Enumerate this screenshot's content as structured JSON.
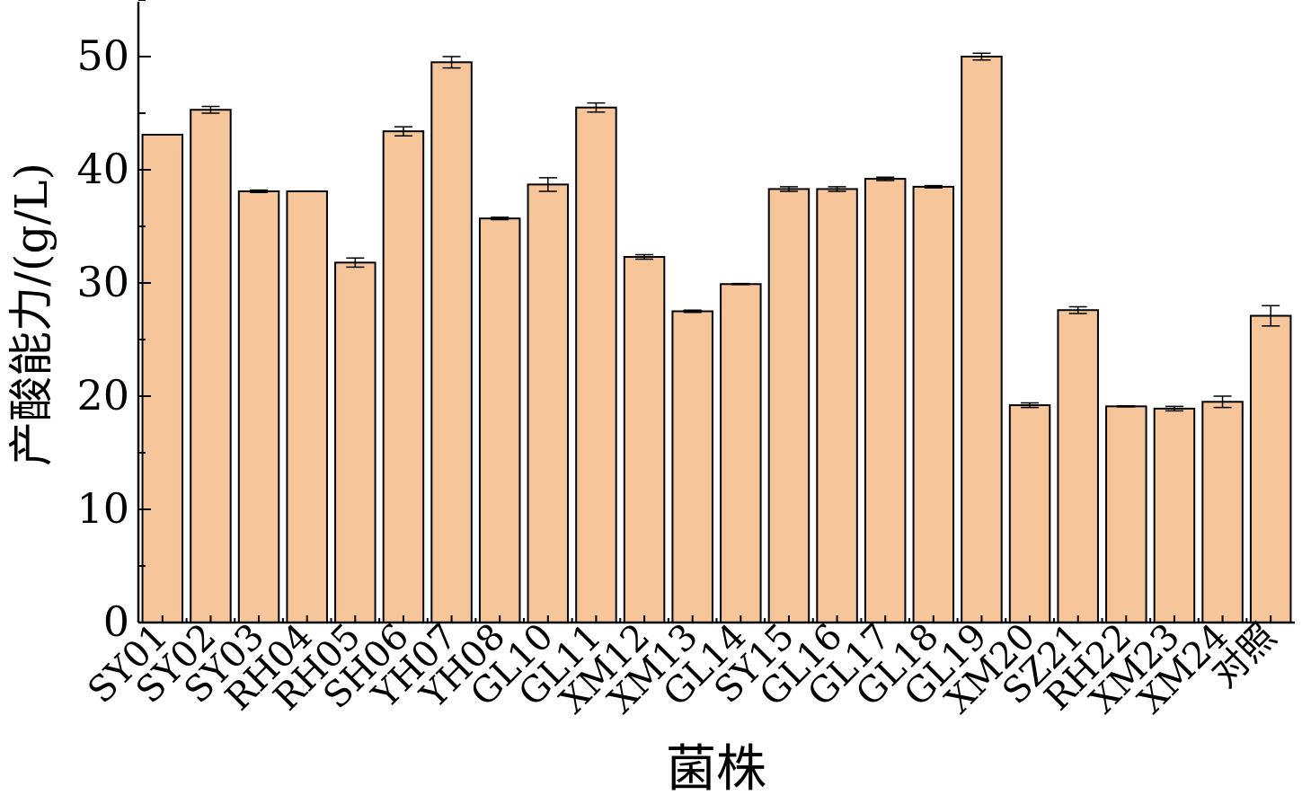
{
  "chart_data": {
    "type": "bar",
    "xlabel": "菌株",
    "ylabel": "产酸能力/(g/L)",
    "ylim": [
      0,
      55
    ],
    "yticks": [
      0,
      10,
      20,
      30,
      40,
      50
    ],
    "grid": false,
    "bar_color": "#F6C599",
    "edge_color": "#000000",
    "categories": [
      "SY01",
      "SY02",
      "SY03",
      "RH04",
      "RH05",
      "SH06",
      "YH07",
      "YH08",
      "GL10",
      "GL11",
      "XM12",
      "XM13",
      "GL14",
      "SY15",
      "GL16",
      "GL17",
      "GL18",
      "GL19",
      "XM20",
      "SZ21",
      "RH22",
      "XM23",
      "XM24",
      "对照"
    ],
    "values": [
      43.1,
      45.3,
      38.1,
      38.1,
      31.8,
      43.4,
      49.5,
      35.7,
      38.7,
      45.5,
      32.3,
      27.5,
      29.9,
      38.3,
      38.3,
      39.2,
      38.5,
      50.0,
      19.2,
      27.6,
      19.1,
      18.9,
      19.5,
      27.1
    ],
    "errors": [
      0,
      0.3,
      0.1,
      0,
      0.4,
      0.4,
      0.5,
      0.1,
      0.6,
      0.4,
      0.2,
      0.1,
      0.05,
      0.2,
      0.2,
      0.15,
      0.1,
      0.3,
      0.2,
      0.3,
      0.05,
      0.2,
      0.5,
      0.9
    ]
  }
}
